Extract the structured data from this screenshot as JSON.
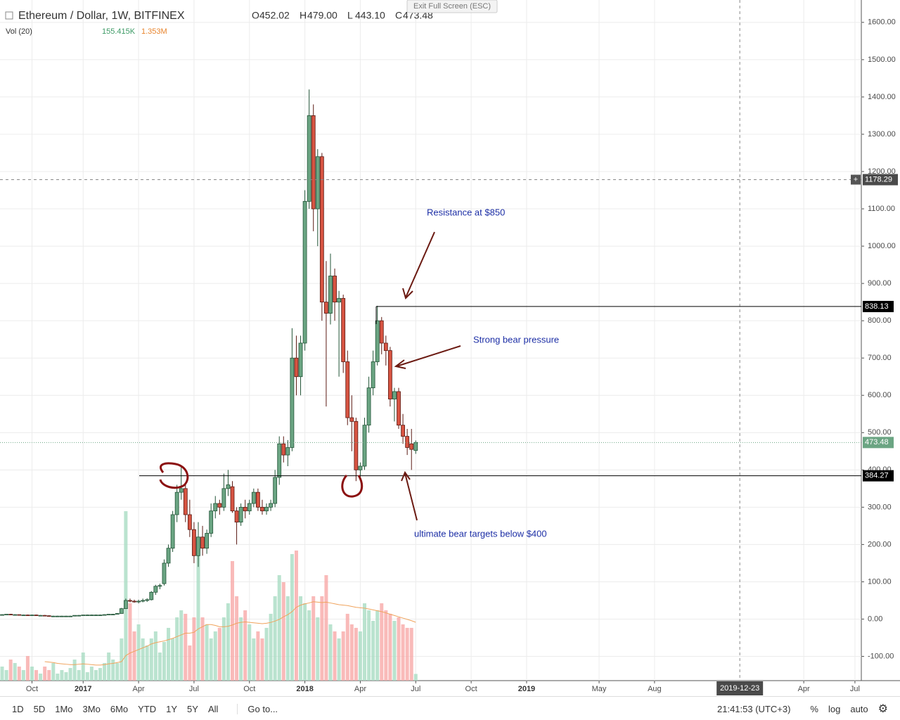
{
  "header": {
    "title": "Ethereum / Dollar, 1W, BITFINEX",
    "ohlc": [
      {
        "key": "O",
        "text": "452.02"
      },
      {
        "key": "H",
        "text": "479.00"
      },
      {
        "key": "L",
        "text": "443.10"
      },
      {
        "key": "C",
        "text": "473.48"
      }
    ],
    "tooltip": "Exit Full Screen (ESC)"
  },
  "toolbar": {
    "ranges": [
      "1D",
      "5D",
      "1Mo",
      "3Mo",
      "6Mo",
      "YTD",
      "1Y",
      "5Y",
      "All"
    ],
    "goto": "Go to...",
    "time": "21:41:53 (UTC+3)",
    "percent": "%",
    "log": "log",
    "auto": "auto"
  },
  "chart_data": {
    "type": "candlestick",
    "categories": [
      null,
      null,
      null,
      null,
      null,
      null,
      null,
      "Oct",
      null,
      null,
      null,
      null,
      null,
      null,
      null,
      null,
      null,
      null,
      null,
      "2017",
      null,
      null,
      null,
      null,
      null,
      null,
      null,
      null,
      null,
      null,
      null,
      null,
      "Apr",
      null,
      null,
      null,
      null,
      null,
      null,
      null,
      null,
      null,
      null,
      null,
      null,
      "Jul",
      null,
      null,
      null,
      null,
      null,
      null,
      null,
      null,
      null,
      null,
      null,
      null,
      "Oct",
      null,
      null,
      null,
      null,
      null,
      null,
      null,
      null,
      null,
      null,
      null,
      null,
      "2018",
      null,
      null,
      null,
      null,
      null,
      null,
      null,
      null,
      null,
      null,
      null,
      null,
      "Apr",
      null,
      null,
      null,
      null,
      null,
      null,
      null,
      null,
      null,
      null,
      null,
      null,
      "Jul"
    ],
    "extended_categories": [
      null,
      null,
      null,
      null,
      null,
      null,
      null,
      null,
      null,
      null,
      null,
      null,
      "Oct",
      null,
      null,
      null,
      null,
      null,
      null,
      null,
      null,
      null,
      null,
      null,
      null,
      "2019",
      null,
      null,
      null,
      null,
      null,
      null,
      null,
      null,
      null,
      null,
      null,
      null,
      null,
      null,
      null,
      null,
      "May",
      null,
      null,
      null,
      null,
      null,
      null,
      null,
      null,
      null,
      null,
      null,
      null,
      "Aug",
      null,
      null,
      null,
      null,
      null,
      null,
      null,
      null,
      null,
      null,
      null,
      null,
      null,
      null,
      null,
      null,
      null,
      null,
      null,
      "2019-12-23",
      null,
      null,
      null,
      null,
      null,
      null,
      null,
      null,
      null,
      null,
      null,
      null,
      null,
      null,
      "Apr",
      null,
      null,
      null,
      null,
      null,
      null,
      null,
      null,
      null,
      null,
      null,
      "Jul",
      null
    ],
    "candles": [
      [
        12,
        13,
        11,
        12
      ],
      [
        12,
        13,
        11,
        13
      ],
      [
        13,
        14,
        12,
        12
      ],
      [
        12,
        13,
        11,
        12
      ],
      [
        12,
        12,
        10,
        11
      ],
      [
        11,
        12,
        10,
        11
      ],
      [
        11,
        12,
        10,
        10
      ],
      [
        10,
        12,
        9,
        11
      ],
      [
        11,
        12,
        10,
        10
      ],
      [
        10,
        11,
        9,
        10
      ],
      [
        10,
        11,
        8,
        9
      ],
      [
        9,
        10,
        8,
        8
      ],
      [
        8,
        9,
        7,
        8
      ],
      [
        8,
        9,
        7,
        8
      ],
      [
        8,
        9,
        7,
        8
      ],
      [
        8,
        9,
        7,
        8
      ],
      [
        8,
        9,
        7,
        8
      ],
      [
        8,
        10,
        8,
        10
      ],
      [
        10,
        11,
        9,
        10
      ],
      [
        10,
        11,
        9,
        11
      ],
      [
        11,
        12,
        10,
        11
      ],
      [
        11,
        12,
        10,
        11
      ],
      [
        11,
        12,
        10,
        11
      ],
      [
        11,
        12,
        10,
        11
      ],
      [
        11,
        13,
        11,
        12
      ],
      [
        12,
        13,
        11,
        13
      ],
      [
        13,
        14,
        12,
        13
      ],
      [
        13,
        16,
        13,
        15
      ],
      [
        15,
        30,
        15,
        28
      ],
      [
        28,
        55,
        28,
        50
      ],
      [
        50,
        55,
        45,
        48
      ],
      [
        48,
        52,
        44,
        46
      ],
      [
        46,
        52,
        42,
        48
      ],
      [
        48,
        55,
        45,
        50
      ],
      [
        50,
        56,
        46,
        52
      ],
      [
        52,
        75,
        50,
        72
      ],
      [
        72,
        92,
        65,
        88
      ],
      [
        88,
        95,
        80,
        90
      ],
      [
        95,
        160,
        90,
        150
      ],
      [
        150,
        200,
        140,
        190
      ],
      [
        190,
        290,
        180,
        280
      ],
      [
        280,
        360,
        260,
        340
      ],
      [
        340,
        410,
        320,
        350
      ],
      [
        350,
        360,
        260,
        280
      ],
      [
        280,
        320,
        220,
        240
      ],
      [
        240,
        260,
        150,
        170
      ],
      [
        170,
        260,
        140,
        220
      ],
      [
        220,
        250,
        170,
        190
      ],
      [
        190,
        240,
        175,
        230
      ],
      [
        230,
        310,
        220,
        290
      ],
      [
        290,
        330,
        270,
        310
      ],
      [
        310,
        320,
        280,
        300
      ],
      [
        300,
        390,
        290,
        350
      ],
      [
        350,
        400,
        330,
        360
      ],
      [
        355,
        370,
        285,
        290
      ],
      [
        290,
        300,
        200,
        260
      ],
      [
        260,
        310,
        250,
        300
      ],
      [
        300,
        320,
        270,
        290
      ],
      [
        290,
        320,
        280,
        310
      ],
      [
        310,
        350,
        300,
        340
      ],
      [
        340,
        350,
        290,
        300
      ],
      [
        300,
        320,
        280,
        290
      ],
      [
        290,
        310,
        280,
        300
      ],
      [
        300,
        320,
        290,
        310
      ],
      [
        310,
        400,
        300,
        380
      ],
      [
        380,
        490,
        360,
        470
      ],
      [
        470,
        490,
        420,
        440
      ],
      [
        440,
        480,
        410,
        460
      ],
      [
        460,
        780,
        450,
        700
      ],
      [
        700,
        760,
        600,
        650
      ],
      [
        650,
        760,
        600,
        740
      ],
      [
        740,
        1150,
        720,
        1120
      ],
      [
        1120,
        1420,
        1100,
        1350
      ],
      [
        1350,
        1380,
        1040,
        1100
      ],
      [
        1100,
        1260,
        1000,
        1240
      ],
      [
        1240,
        1250,
        800,
        850
      ],
      [
        850,
        960,
        570,
        820
      ],
      [
        820,
        980,
        790,
        920
      ],
      [
        920,
        940,
        800,
        850
      ],
      [
        850,
        880,
        650,
        860
      ],
      [
        860,
        870,
        660,
        690
      ],
      [
        690,
        720,
        520,
        540
      ],
      [
        540,
        600,
        450,
        530
      ],
      [
        530,
        540,
        370,
        400
      ],
      [
        400,
        420,
        370,
        410
      ],
      [
        410,
        540,
        400,
        520
      ],
      [
        520,
        650,
        500,
        620
      ],
      [
        620,
        720,
        600,
        690
      ],
      [
        690,
        840,
        680,
        800
      ],
      [
        800,
        810,
        710,
        740
      ],
      [
        740,
        760,
        680,
        720
      ],
      [
        720,
        730,
        570,
        590
      ],
      [
        590,
        620,
        530,
        610
      ],
      [
        610,
        620,
        510,
        520
      ],
      [
        520,
        550,
        470,
        490
      ],
      [
        490,
        510,
        440,
        460
      ],
      [
        470,
        510,
        400,
        455
      ],
      [
        452.02,
        479,
        443.1,
        473.48
      ]
    ],
    "volume_legend": "Vol (20)",
    "volumes": [
      326,
      245,
      489,
      408,
      326,
      245,
      571,
      326,
      245,
      163,
      326,
      245,
      408,
      163,
      245,
      196,
      293,
      489,
      245,
      652,
      196,
      326,
      245,
      293,
      408,
      652,
      489,
      408,
      978,
      3928,
      1793,
      1141,
      1304,
      978,
      815,
      978,
      1141,
      652,
      897,
      1223,
      978,
      1467,
      1630,
      1549,
      815,
      1467,
      2934,
      1467,
      1304,
      978,
      1141,
      1223,
      1467,
      1793,
      2771,
      1956,
      1467,
      1630,
      1304,
      978,
      1141,
      978,
      1223,
      1549,
      1956,
      2445,
      2282,
      1956,
      2934,
      3016,
      1956,
      1793,
      1630,
      1956,
      1467,
      1956,
      2445,
      1304,
      1141,
      978,
      1141,
      1549,
      1304,
      1223,
      1141,
      1793,
      1630,
      1386,
      1630,
      1793,
      1630,
      1549,
      1386,
      1467,
      1304,
      1223,
      1223,
      155.415
    ],
    "volume_label": "155.415K",
    "volume_ma": [
      null,
      null,
      null,
      null,
      null,
      null,
      null,
      null,
      null,
      null,
      440,
      430,
      420,
      400,
      390,
      380,
      370,
      370,
      380,
      390,
      380,
      370,
      360,
      360,
      370,
      390,
      400,
      420,
      440,
      580,
      640,
      680,
      720,
      760,
      800,
      850,
      880,
      900,
      920,
      950,
      980,
      1020,
      1060,
      1100,
      1100,
      1120,
      1200,
      1250,
      1300,
      1300,
      1280,
      1250,
      1250,
      1260,
      1290,
      1330,
      1350,
      1360,
      1350,
      1340,
      1330,
      1320,
      1330,
      1350,
      1380,
      1420,
      1480,
      1530,
      1600,
      1700,
      1750,
      1780,
      1800,
      1830,
      1820,
      1810,
      1820,
      1800,
      1780,
      1760,
      1750,
      1740,
      1720,
      1700,
      1690,
      1680,
      1660,
      1640,
      1620,
      1600,
      1570,
      1540,
      1510,
      1480,
      1450,
      1420,
      1390,
      1353
    ],
    "volume_ma_label": "1.353M",
    "up_color": "#6ba583",
    "down_color": "#d75442",
    "ylim": [
      -165,
      1660
    ],
    "yticks": [
      {
        "value": -100,
        "label": "-100.00"
      },
      {
        "value": 0,
        "label": "0.00"
      },
      {
        "value": 100,
        "label": "100.00"
      },
      {
        "value": 200,
        "label": "200.00"
      },
      {
        "value": 300,
        "label": "300.00"
      },
      {
        "value": 400,
        "label": "400.00"
      },
      {
        "value": 500,
        "label": "500.00"
      },
      {
        "value": 600,
        "label": "600.00"
      },
      {
        "value": 700,
        "label": "700.00"
      },
      {
        "value": 800,
        "label": "800.00"
      },
      {
        "value": 900,
        "label": "900.00"
      },
      {
        "value": 1000,
        "label": "1000.00"
      },
      {
        "value": 1100,
        "label": "1100.00"
      },
      {
        "value": 1200,
        "label": "1200.00"
      },
      {
        "value": 1300,
        "label": "1300.00"
      },
      {
        "value": 1400,
        "label": "1400.00"
      },
      {
        "value": 1500,
        "label": "1500.00"
      },
      {
        "value": 1600,
        "label": "1600.00"
      }
    ],
    "grid": true,
    "price_lines": [
      {
        "value": 838.13,
        "label": "838.13"
      },
      {
        "value": 384.27,
        "label": "384.27"
      }
    ],
    "last_price": {
      "value": 473.48,
      "label": "473.48"
    },
    "crosshair": {
      "value": 1178.29,
      "label": "1178.29"
    },
    "annotations": [
      "Resistance at $850",
      "Strong bear pressure",
      "ultimate bear targets below $400"
    ]
  }
}
